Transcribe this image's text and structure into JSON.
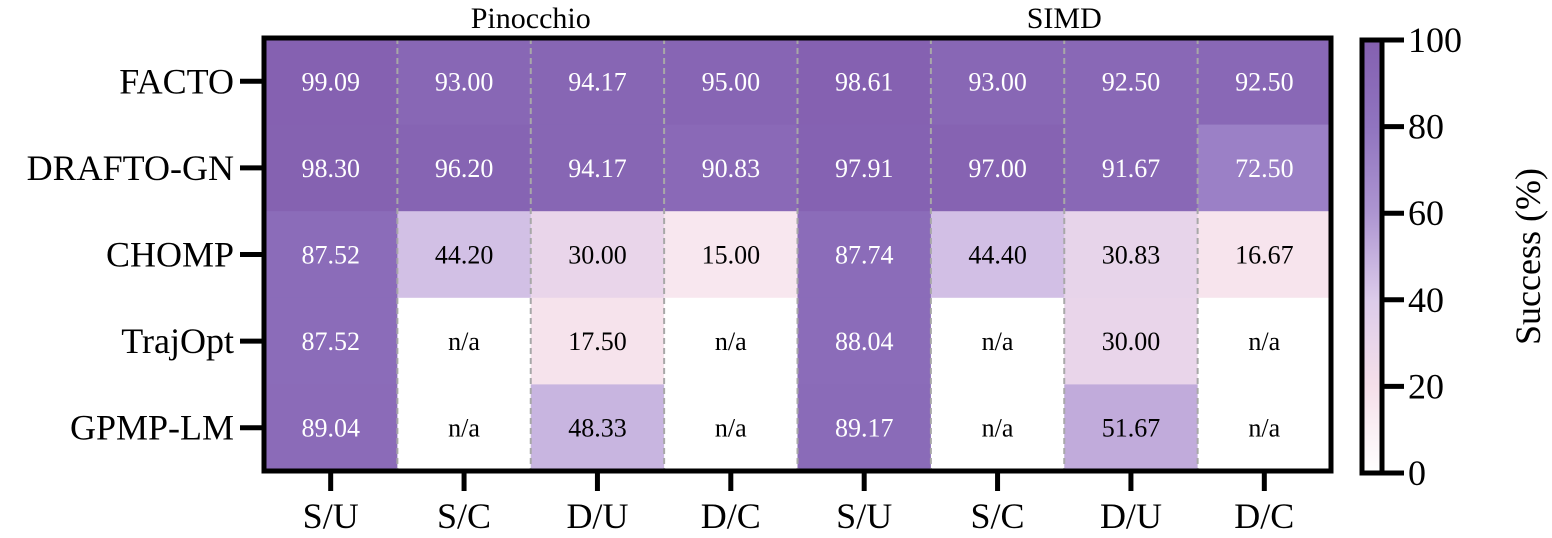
{
  "chart_data": {
    "type": "heatmap",
    "group_labels": [
      "Pinocchio",
      "SIMD"
    ],
    "rows": [
      "FACTO",
      "DRAFTO-GN",
      "CHOMP",
      "TrajOpt",
      "GPMP-LM"
    ],
    "columns": [
      "S/U",
      "S/C",
      "D/U",
      "D/C",
      "S/U",
      "S/C",
      "D/U",
      "D/C"
    ],
    "values": [
      [
        99.09,
        93.0,
        94.17,
        95.0,
        98.61,
        93.0,
        92.5,
        92.5
      ],
      [
        98.3,
        96.2,
        94.17,
        90.83,
        97.91,
        97.0,
        91.67,
        72.5
      ],
      [
        87.52,
        44.2,
        30.0,
        15.0,
        87.74,
        44.4,
        30.83,
        16.67
      ],
      [
        87.52,
        null,
        17.5,
        null,
        88.04,
        null,
        30.0,
        null
      ],
      [
        89.04,
        null,
        48.33,
        null,
        89.17,
        null,
        51.67,
        null
      ]
    ],
    "cell_labels": [
      [
        "99.09",
        "93.00",
        "94.17",
        "95.00",
        "98.61",
        "93.00",
        "92.50",
        "92.50"
      ],
      [
        "98.30",
        "96.20",
        "94.17",
        "90.83",
        "97.91",
        "97.00",
        "91.67",
        "72.50"
      ],
      [
        "87.52",
        "44.20",
        "30.00",
        "15.00",
        "87.74",
        "44.40",
        "30.83",
        "16.67"
      ],
      [
        "87.52",
        "n/a",
        "17.50",
        "n/a",
        "88.04",
        "n/a",
        "30.00",
        "n/a"
      ],
      [
        "89.04",
        "n/a",
        "48.33",
        "n/a",
        "89.17",
        "n/a",
        "51.67",
        "n/a"
      ]
    ],
    "colorbar": {
      "label": "Success (%)",
      "range": [
        0,
        100
      ],
      "ticks": [
        0,
        20,
        40,
        60,
        80,
        100
      ],
      "tick_labels": [
        "0",
        "20",
        "40",
        "60",
        "80",
        "100"
      ],
      "colors": [
        "#ffffff",
        "#f5dfe9",
        "#dccbea",
        "#ad95d1",
        "#9074bf",
        "#8460b0"
      ]
    },
    "grid": "dashed column separators"
  }
}
